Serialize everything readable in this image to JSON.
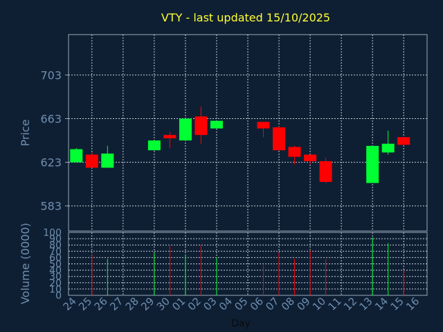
{
  "chart_data": {
    "type": "candlestick",
    "title": "VTY - last updated 15/10/2025",
    "xlabel": "Day",
    "ylabel": "Price",
    "volume_label": "Volume (0000)",
    "price_ticks": [
      583,
      623,
      663,
      703
    ],
    "volume_ticks": [
      0,
      10,
      20,
      30,
      40,
      50,
      60,
      70,
      80,
      90,
      100
    ],
    "ylim": [
      560,
      740
    ],
    "volume_ylim": [
      0,
      100
    ],
    "grid": true,
    "colors": {
      "background": "#0f1f33",
      "up": "#00ff33",
      "down": "#ff0000",
      "title": "#ffff33",
      "axis_text": "#6f8fb0",
      "frame": "#9aa9b8"
    },
    "x_labels": [
      "24",
      "25",
      "26",
      "27",
      "28",
      "29",
      "30",
      "01",
      "02",
      "03",
      "04",
      "05",
      "06",
      "07",
      "08",
      "09",
      "10",
      "11",
      "12",
      "13",
      "14",
      "15",
      "16"
    ],
    "candles": [
      {
        "day": "24",
        "open": 623,
        "high": 636,
        "low": 623,
        "close": 635
      },
      {
        "day": "25",
        "open": 630,
        "high": 632,
        "low": 618,
        "close": 618
      },
      {
        "day": "26",
        "open": 618,
        "high": 638,
        "low": 618,
        "close": 631
      },
      {
        "day": "29",
        "open": 634,
        "high": 643,
        "low": 634,
        "close": 643
      },
      {
        "day": "30",
        "open": 648,
        "high": 651,
        "low": 636,
        "close": 645
      },
      {
        "day": "01",
        "open": 643,
        "high": 663,
        "low": 643,
        "close": 663
      },
      {
        "day": "02",
        "open": 665,
        "high": 674,
        "low": 640,
        "close": 648
      },
      {
        "day": "03",
        "open": 654,
        "high": 661,
        "low": 654,
        "close": 661
      },
      {
        "day": "06",
        "open": 660,
        "high": 660,
        "low": 646,
        "close": 654
      },
      {
        "day": "07",
        "open": 655,
        "high": 656,
        "low": 634,
        "close": 634
      },
      {
        "day": "08",
        "open": 637,
        "high": 638,
        "low": 621,
        "close": 628
      },
      {
        "day": "09",
        "open": 630,
        "high": 630,
        "low": 621,
        "close": 624
      },
      {
        "day": "10",
        "open": 624,
        "high": 627,
        "low": 604,
        "close": 605
      },
      {
        "day": "13",
        "open": 604,
        "high": 638,
        "low": 604,
        "close": 638
      },
      {
        "day": "14",
        "open": 632,
        "high": 652,
        "low": 630,
        "close": 640
      },
      {
        "day": "15",
        "open": 646,
        "high": 646,
        "low": 639,
        "close": 639
      }
    ],
    "volumes": [
      {
        "day": "25",
        "value": 65,
        "dir": "down"
      },
      {
        "day": "26",
        "value": 58,
        "dir": "up"
      },
      {
        "day": "29",
        "value": 68,
        "dir": "up"
      },
      {
        "day": "30",
        "value": 78,
        "dir": "down"
      },
      {
        "day": "01",
        "value": 65,
        "dir": "up"
      },
      {
        "day": "02",
        "value": 80,
        "dir": "down"
      },
      {
        "day": "03",
        "value": 60,
        "dir": "up"
      },
      {
        "day": "06",
        "value": 48,
        "dir": "down"
      },
      {
        "day": "07",
        "value": 68,
        "dir": "down"
      },
      {
        "day": "08",
        "value": 58,
        "dir": "down"
      },
      {
        "day": "09",
        "value": 72,
        "dir": "down"
      },
      {
        "day": "10",
        "value": 58,
        "dir": "down"
      },
      {
        "day": "13",
        "value": 92,
        "dir": "up"
      },
      {
        "day": "14",
        "value": 83,
        "dir": "up"
      },
      {
        "day": "15",
        "value": 40,
        "dir": "down"
      }
    ]
  }
}
